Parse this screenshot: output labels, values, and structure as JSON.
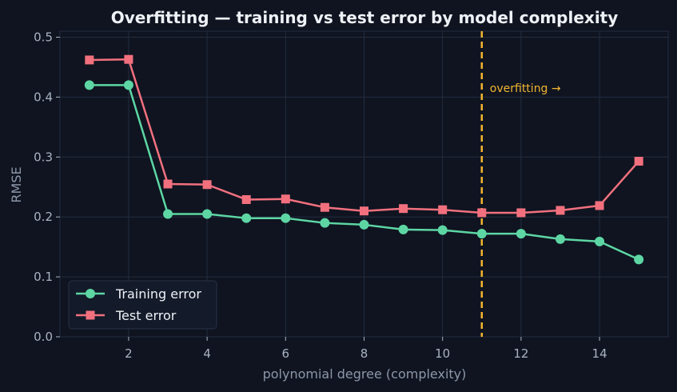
{
  "colors": {
    "background": "#0f1420",
    "grid": "#232c40",
    "train": "#5dd6a4",
    "test": "#f2707e",
    "marker_line": "#f2b531",
    "text": "#eef1f6",
    "muted": "#aab3c3"
  },
  "chart_data": {
    "type": "line",
    "title": "Overfitting — training vs test error by model complexity",
    "xlabel": "polynomial degree (complexity)",
    "ylabel": "RMSE",
    "xlim": [
      0.25,
      15.75
    ],
    "ylim": [
      0,
      0.51
    ],
    "x_ticks": [
      2,
      4,
      6,
      8,
      10,
      12,
      14
    ],
    "y_ticks": [
      0.0,
      0.1,
      0.2,
      0.3,
      0.4,
      0.5
    ],
    "y_tick_labels": [
      "0.0",
      "0.1",
      "0.2",
      "0.3",
      "0.4",
      "0.5"
    ],
    "grid": true,
    "legend_position": "bottom-left",
    "x": [
      1,
      2,
      3,
      4,
      5,
      6,
      7,
      8,
      9,
      10,
      11,
      12,
      13,
      14,
      15
    ],
    "series": [
      {
        "name": "Training error",
        "marker": "circle",
        "values": [
          0.42,
          0.42,
          0.205,
          0.205,
          0.198,
          0.198,
          0.19,
          0.187,
          0.179,
          0.178,
          0.172,
          0.172,
          0.163,
          0.159,
          0.129
        ]
      },
      {
        "name": "Test error",
        "marker": "square",
        "values": [
          0.462,
          0.463,
          0.255,
          0.254,
          0.229,
          0.23,
          0.216,
          0.21,
          0.214,
          0.212,
          0.207,
          0.207,
          0.211,
          0.219,
          0.293
        ]
      }
    ],
    "vline": {
      "x": 11,
      "label": "overfitting →"
    }
  }
}
